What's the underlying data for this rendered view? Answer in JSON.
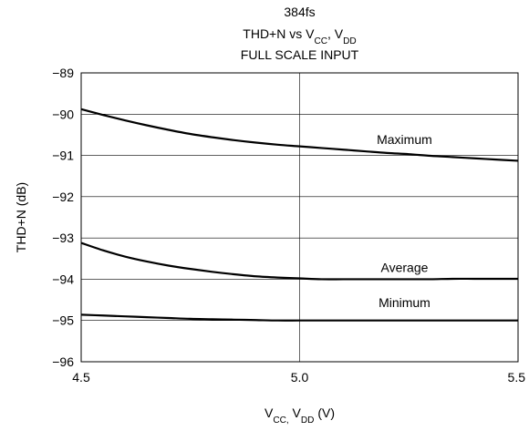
{
  "chart_data": {
    "type": "line",
    "title_lines": [
      {
        "text": "384fs"
      },
      {
        "parts": [
          {
            "t": "THD+N vs V"
          },
          {
            "t": "CC",
            "sub": true
          },
          {
            "t": ", V"
          },
          {
            "t": "DD",
            "sub": true
          }
        ]
      },
      {
        "text": "FULL SCALE INPUT"
      }
    ],
    "xlabel_parts": [
      {
        "t": "V"
      },
      {
        "t": "CC,",
        "sub": true
      },
      {
        "t": " V"
      },
      {
        "t": "DD",
        "sub": true
      },
      {
        "t": " (V)"
      }
    ],
    "ylabel": "THD+N (dB)",
    "xlim": [
      4.5,
      5.5
    ],
    "ylim": [
      -96,
      -89
    ],
    "x_ticks": [
      4.5,
      5.0,
      5.5
    ],
    "x_tick_labels": [
      "4.5",
      "5.0",
      "5.5"
    ],
    "y_ticks": [
      -96,
      -95,
      -94,
      -93,
      -92,
      -91,
      -90,
      -89
    ],
    "y_tick_labels": [
      "−96",
      "−95",
      "−94",
      "−93",
      "−92",
      "−91",
      "−90",
      "−89"
    ],
    "grid": true,
    "series": [
      {
        "name": "Maximum",
        "label_at": [
          5.24,
          -90.72
        ],
        "x": [
          4.5,
          4.55,
          4.6,
          4.65,
          4.7,
          4.75,
          4.8,
          4.85,
          4.9,
          4.95,
          5.0,
          5.05,
          5.1,
          5.15,
          5.2,
          5.25,
          5.3,
          5.35,
          5.4,
          5.45,
          5.5
        ],
        "values": [
          -89.88,
          -90.02,
          -90.15,
          -90.27,
          -90.38,
          -90.48,
          -90.56,
          -90.63,
          -90.69,
          -90.74,
          -90.78,
          -90.82,
          -90.86,
          -90.9,
          -90.94,
          -90.97,
          -91.01,
          -91.04,
          -91.07,
          -91.1,
          -91.13
        ]
      },
      {
        "name": "Average",
        "label_at": [
          5.24,
          -93.82
        ],
        "x": [
          4.5,
          4.55,
          4.6,
          4.65,
          4.7,
          4.75,
          4.8,
          4.85,
          4.9,
          4.95,
          5.0,
          5.05,
          5.1,
          5.15,
          5.2,
          5.25,
          5.3,
          5.35,
          5.4,
          5.45,
          5.5
        ],
        "values": [
          -93.12,
          -93.3,
          -93.45,
          -93.57,
          -93.67,
          -93.75,
          -93.82,
          -93.88,
          -93.93,
          -93.96,
          -93.98,
          -94.0,
          -94.0,
          -94.0,
          -94.0,
          -94.0,
          -94.0,
          -93.99,
          -93.99,
          -93.99,
          -93.99
        ]
      },
      {
        "name": "Minimum",
        "label_at": [
          5.24,
          -94.68
        ],
        "x": [
          4.5,
          4.55,
          4.6,
          4.65,
          4.7,
          4.75,
          4.8,
          4.85,
          4.9,
          4.95,
          5.0,
          5.05,
          5.1,
          5.15,
          5.2,
          5.25,
          5.3,
          5.35,
          5.4,
          5.45,
          5.5
        ],
        "values": [
          -94.86,
          -94.88,
          -94.9,
          -94.92,
          -94.94,
          -94.96,
          -94.97,
          -94.98,
          -94.99,
          -95.0,
          -95.0,
          -95.0,
          -95.0,
          -95.0,
          -95.0,
          -95.0,
          -95.0,
          -95.0,
          -95.0,
          -95.0,
          -95.0
        ]
      }
    ]
  }
}
